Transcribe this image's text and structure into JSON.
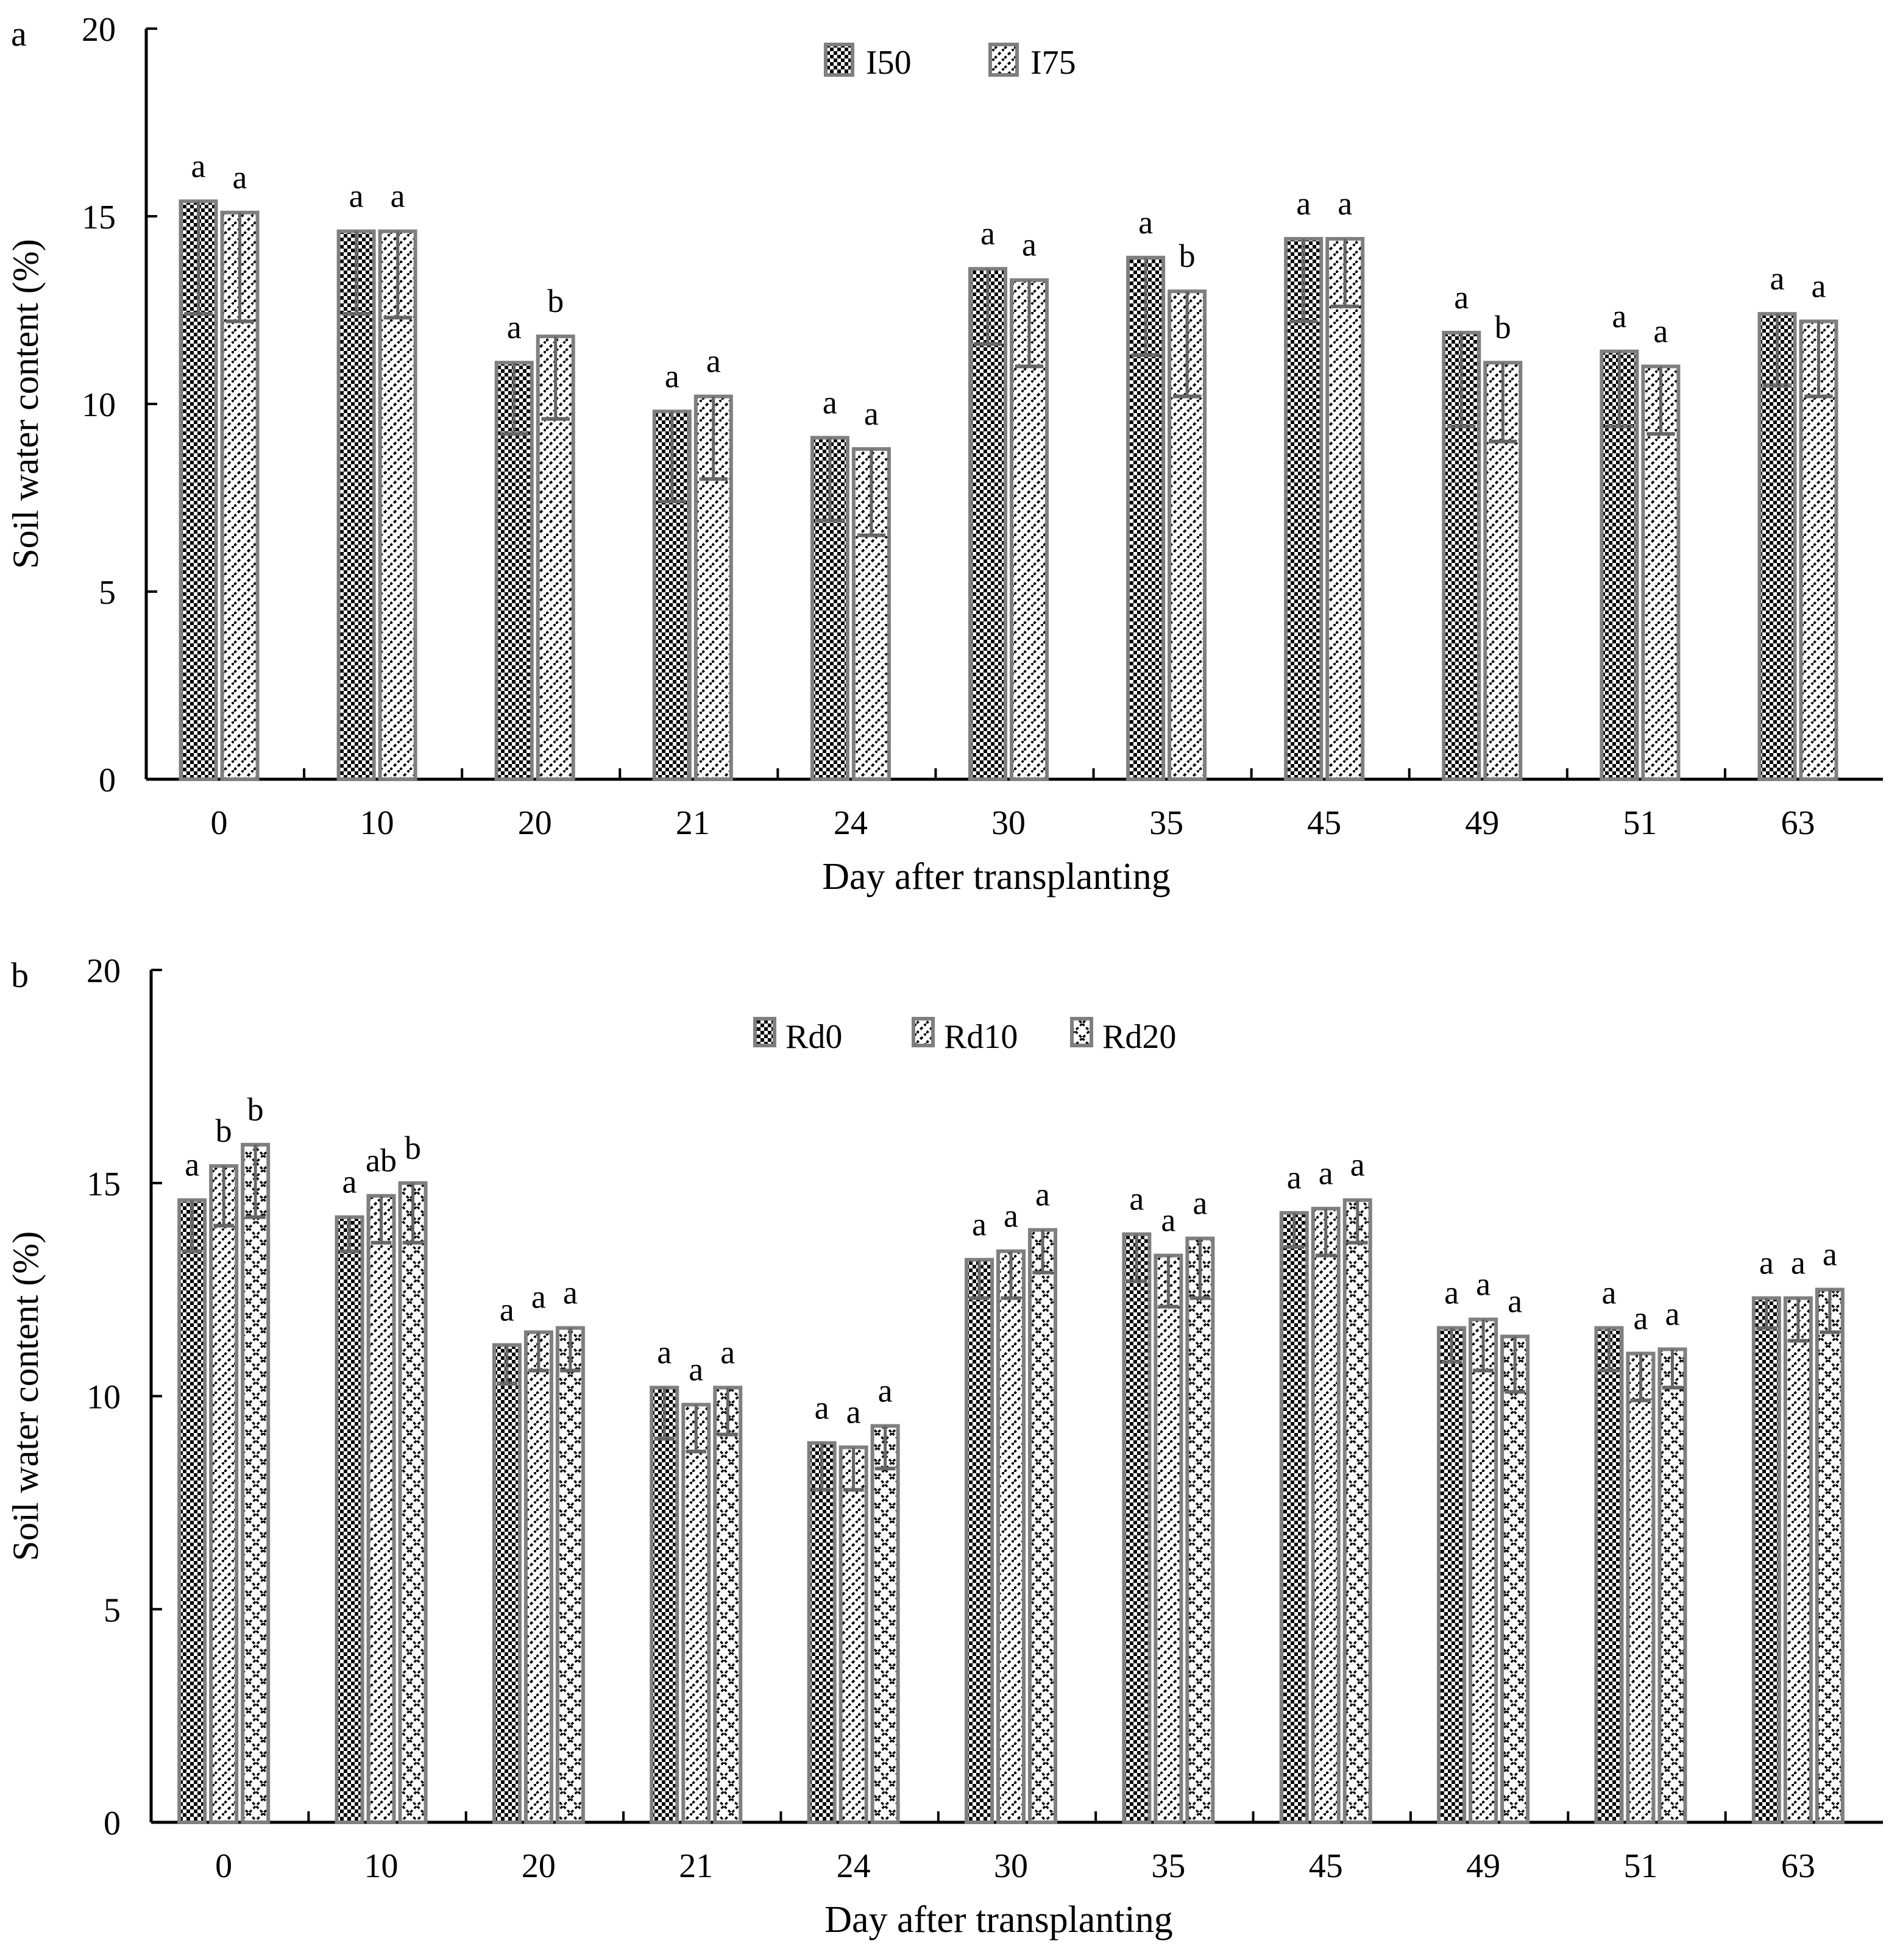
{
  "chart_data": [
    {
      "panel_label": "a",
      "type": "bar",
      "title": "",
      "xlabel": "Day after transplanting",
      "ylabel": "Soil water content (%)",
      "ylim": [
        0,
        20
      ],
      "yticks": [
        0,
        5,
        10,
        15,
        20
      ],
      "grid": false,
      "legend_position": "top-center",
      "categories": [
        "0",
        "10",
        "20",
        "21",
        "24",
        "30",
        "35",
        "45",
        "49",
        "51",
        "63"
      ],
      "series": [
        {
          "name": "I50",
          "pattern": "checker",
          "values": [
            15.4,
            14.6,
            11.1,
            9.8,
            9.1,
            13.6,
            13.9,
            14.4,
            11.9,
            11.4,
            12.4
          ],
          "error_low": [
            12.4,
            12.4,
            9.2,
            7.4,
            6.9,
            11.6,
            11.3,
            12.2,
            9.4,
            9.4,
            10.5
          ],
          "letters": [
            "a",
            "a",
            "a",
            "a",
            "a",
            "a",
            "a",
            "a",
            "a",
            "a",
            "a"
          ]
        },
        {
          "name": "I75",
          "pattern": "diagonal",
          "values": [
            15.1,
            14.6,
            11.8,
            10.2,
            8.8,
            13.3,
            13.0,
            14.4,
            11.1,
            11.0,
            12.2
          ],
          "error_low": [
            12.2,
            12.3,
            9.6,
            8.0,
            6.5,
            11.0,
            10.2,
            12.6,
            9.0,
            9.2,
            10.2
          ],
          "letters": [
            "a",
            "a",
            "b",
            "a",
            "a",
            "a",
            "b",
            "a",
            "b",
            "a",
            "a"
          ]
        }
      ]
    },
    {
      "panel_label": "b",
      "type": "bar",
      "title": "",
      "xlabel": "Day after transplanting",
      "ylabel": "Soil water content (%)",
      "ylim": [
        0,
        20
      ],
      "yticks": [
        0,
        5,
        10,
        15,
        20
      ],
      "grid": false,
      "legend_position": "top-center",
      "categories": [
        "0",
        "10",
        "20",
        "21",
        "24",
        "30",
        "35",
        "45",
        "49",
        "51",
        "63"
      ],
      "series": [
        {
          "name": "Rd0",
          "pattern": "checker",
          "values": [
            14.6,
            14.2,
            11.2,
            10.2,
            8.9,
            13.2,
            13.8,
            14.3,
            11.6,
            11.6,
            12.3
          ],
          "error_low": [
            13.4,
            13.4,
            10.3,
            9.0,
            7.8,
            12.3,
            12.7,
            13.5,
            10.8,
            10.6,
            11.6
          ],
          "letters": [
            "a",
            "a",
            "a",
            "a",
            "a",
            "a",
            "a",
            "a",
            "a",
            "a",
            "a"
          ]
        },
        {
          "name": "Rd10",
          "pattern": "diagonal",
          "values": [
            15.4,
            14.7,
            11.5,
            9.8,
            8.8,
            13.4,
            13.3,
            14.4,
            11.8,
            11.0,
            12.3
          ],
          "error_low": [
            14.0,
            13.6,
            10.6,
            8.7,
            7.8,
            12.3,
            12.1,
            13.3,
            10.6,
            9.9,
            11.3
          ],
          "letters": [
            "b",
            "ab",
            "a",
            "a",
            "a",
            "a",
            "a",
            "a",
            "a",
            "a",
            "a"
          ]
        },
        {
          "name": "Rd20",
          "pattern": "cross",
          "values": [
            15.9,
            15.0,
            11.6,
            10.2,
            9.3,
            13.9,
            13.7,
            14.6,
            11.4,
            11.1,
            12.5
          ],
          "error_low": [
            14.2,
            13.6,
            10.6,
            9.1,
            8.3,
            12.9,
            12.3,
            13.6,
            10.1,
            10.2,
            11.5
          ],
          "letters": [
            "b",
            "b",
            "a",
            "a",
            "a",
            "a",
            "a",
            "a",
            "a",
            "a",
            "a"
          ]
        }
      ]
    }
  ]
}
